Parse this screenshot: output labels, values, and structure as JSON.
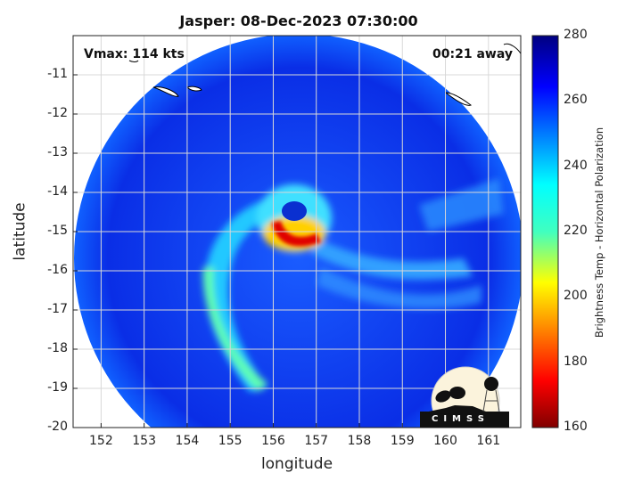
{
  "title": "Jasper: 08-Dec-2023 07:30:00",
  "annotations": {
    "vmax": "Vmax: 114 kts",
    "away": "00:21 away"
  },
  "map": {
    "xlabel": "longitude",
    "ylabel": "latitude",
    "xlim": [
      151.35,
      161.75
    ],
    "ylim": [
      -20,
      -10
    ],
    "xticks": [
      "152",
      "153",
      "154",
      "155",
      "156",
      "157",
      "158",
      "159",
      "160",
      "161"
    ],
    "yticks": [
      "-11",
      "-12",
      "-13",
      "-14",
      "-15",
      "-16",
      "-17",
      "-18",
      "-19",
      "-20"
    ],
    "grid": true,
    "storm_center": {
      "lon": 156.2,
      "lat": -14.8
    }
  },
  "colorbar": {
    "label": "Brightness Temp - Horizontal Polarization",
    "range": [
      160,
      280
    ],
    "ticks": [
      "280",
      "260",
      "240",
      "220",
      "200",
      "180",
      "160"
    ],
    "colormap": "jet",
    "colors": [
      "#800000",
      "#ff0000",
      "#ffff00",
      "#00ffff",
      "#0000ff",
      "#000080"
    ]
  },
  "logo": {
    "text": "CIMSS"
  }
}
